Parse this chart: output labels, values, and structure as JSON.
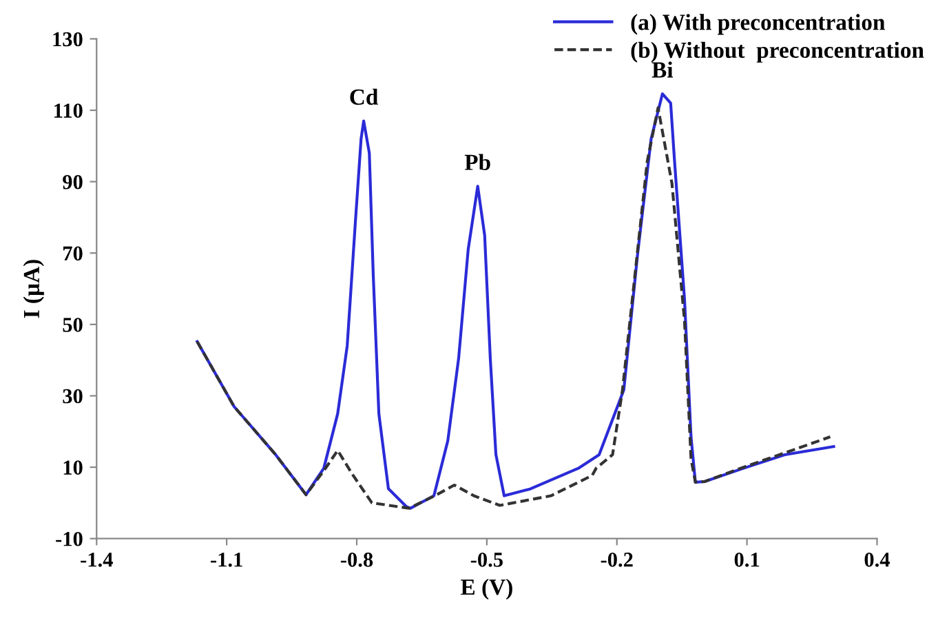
{
  "chart_data": {
    "type": "line",
    "xlabel": "E (V)",
    "ylabel": "I (µA)",
    "xlim": [
      -1.4,
      0.4
    ],
    "xticks": [
      -1.4,
      -1.1,
      -0.8,
      -0.5,
      -0.2,
      0.1,
      0.4
    ],
    "ylim": [
      -10,
      130
    ],
    "yticks": [
      -10,
      10,
      30,
      50,
      70,
      90,
      110,
      130
    ],
    "grid": false,
    "legend": "top right",
    "marker": "none",
    "series": [
      {
        "name": "(a) With preconcentration",
        "color": "#2b2bd8",
        "line_style": "solid",
        "x": [
          -1.168,
          -1.083,
          -0.987,
          -0.917,
          -0.876,
          -0.844,
          -0.822,
          -0.803,
          -0.79,
          -0.784,
          -0.771,
          -0.762,
          -0.749,
          -0.727,
          -0.686,
          -0.676,
          -0.622,
          -0.59,
          -0.565,
          -0.543,
          -0.521,
          -0.505,
          -0.492,
          -0.479,
          -0.46,
          -0.4,
          -0.289,
          -0.241,
          -0.184,
          -0.152,
          -0.121,
          -0.095,
          -0.076,
          -0.067,
          -0.044,
          -0.029,
          -0.019,
          0.003,
          0.092,
          0.187,
          0.3
        ],
        "values": [
          45.2,
          27,
          13.5,
          2.3,
          9.7,
          25,
          44,
          79,
          102,
          107,
          98,
          64,
          25,
          4,
          -1,
          -1.5,
          2,
          17.4,
          40.5,
          71,
          88.7,
          75,
          40.5,
          13.5,
          2,
          3.9,
          9.7,
          13.5,
          31.7,
          70,
          102,
          114.6,
          112,
          95.7,
          57,
          18.5,
          5.8,
          6,
          9.7,
          13.5,
          15.8
        ]
      },
      {
        "name": "(b) Without  preconcentration",
        "color": "#333333",
        "line_style": "dashed",
        "x": [
          -1.168,
          -1.083,
          -0.987,
          -0.917,
          -0.876,
          -0.844,
          -0.81,
          -0.765,
          -0.679,
          -0.62,
          -0.575,
          -0.53,
          -0.47,
          -0.352,
          -0.257,
          -0.248,
          -0.21,
          -0.187,
          -0.152,
          -0.13,
          -0.105,
          -0.073,
          -0.044,
          -0.029,
          -0.019,
          0.003,
          0.092,
          0.187,
          0.292
        ],
        "values": [
          45.2,
          27,
          13.5,
          2.3,
          9,
          14.7,
          8,
          0,
          -1.5,
          2,
          5,
          2,
          -0.7,
          2,
          7.7,
          9.7,
          13.5,
          31.7,
          71,
          95.7,
          110.7,
          89.5,
          51,
          12.4,
          5.8,
          6,
          10,
          14,
          18.5
        ]
      }
    ],
    "annotations": [
      {
        "text": "Cd",
        "x": -0.784,
        "y": 107
      },
      {
        "text": "Pb",
        "x": -0.521,
        "y": 88.7
      },
      {
        "text": "Bi",
        "x": -0.095,
        "y": 114.6
      }
    ]
  }
}
